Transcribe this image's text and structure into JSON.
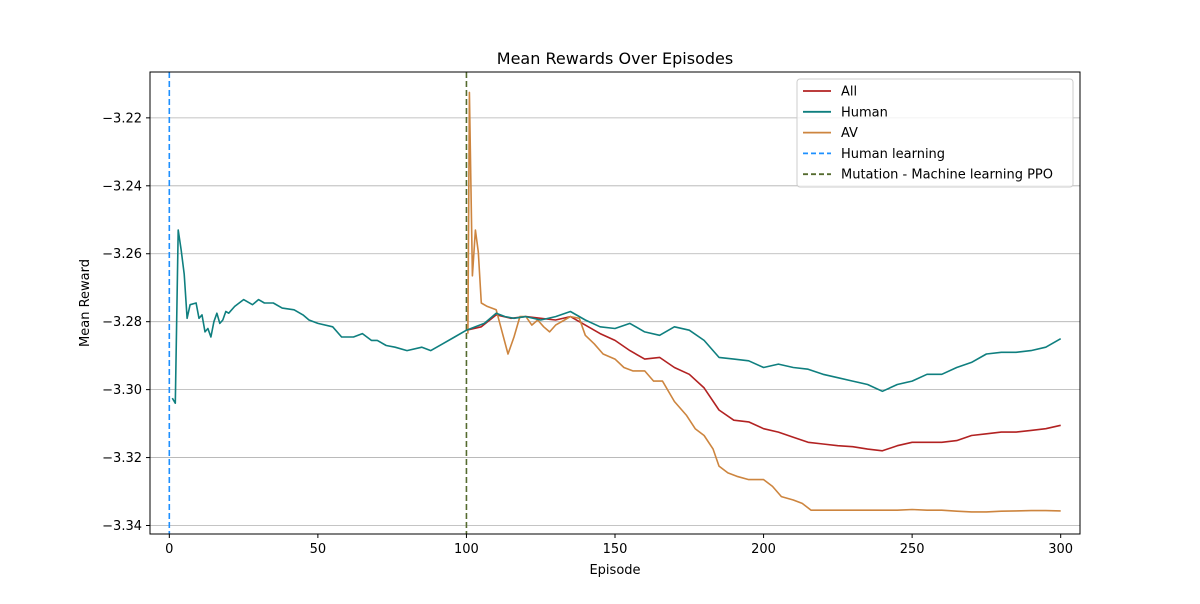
{
  "chart_data": {
    "type": "line",
    "title": "Mean Rewards Over Episodes",
    "xlabel": "Episode",
    "ylabel": "Mean Reward",
    "xlim": [
      -6.5,
      306.5
    ],
    "ylim": [
      -3.3425,
      -3.2065
    ],
    "x_ticks": [
      0,
      50,
      100,
      150,
      200,
      250,
      300
    ],
    "x_tick_labels": [
      "0",
      "50",
      "100",
      "150",
      "200",
      "250",
      "300"
    ],
    "y_ticks": [
      -3.22,
      -3.24,
      -3.26,
      -3.28,
      -3.3,
      -3.32,
      -3.34
    ],
    "y_tick_labels": [
      "−3.22",
      "−3.24",
      "−3.26",
      "−3.28",
      "−3.30",
      "−3.32",
      "−3.34"
    ],
    "grid": "horizontal",
    "legend_position": "top-right",
    "series": [
      {
        "name": "All",
        "color": "#b22222",
        "points": [
          [
            100,
            -3.2825
          ],
          [
            105,
            -3.2815
          ],
          [
            110,
            -3.278
          ],
          [
            115,
            -3.279
          ],
          [
            120,
            -3.2785
          ],
          [
            125,
            -3.279
          ],
          [
            130,
            -3.2795
          ],
          [
            135,
            -3.2785
          ],
          [
            140,
            -3.281
          ],
          [
            145,
            -3.2835
          ],
          [
            150,
            -3.2855
          ],
          [
            155,
            -3.2885
          ],
          [
            160,
            -3.291
          ],
          [
            165,
            -3.2905
          ],
          [
            170,
            -3.2935
          ],
          [
            175,
            -3.2955
          ],
          [
            180,
            -3.2995
          ],
          [
            185,
            -3.306
          ],
          [
            190,
            -3.309
          ],
          [
            195,
            -3.3095
          ],
          [
            200,
            -3.3115
          ],
          [
            205,
            -3.3125
          ],
          [
            210,
            -3.314
          ],
          [
            215,
            -3.3155
          ],
          [
            220,
            -3.316
          ],
          [
            225,
            -3.3165
          ],
          [
            230,
            -3.3168
          ],
          [
            235,
            -3.3175
          ],
          [
            240,
            -3.318
          ],
          [
            245,
            -3.3165
          ],
          [
            250,
            -3.3155
          ],
          [
            255,
            -3.3155
          ],
          [
            260,
            -3.3155
          ],
          [
            265,
            -3.315
          ],
          [
            270,
            -3.3135
          ],
          [
            275,
            -3.313
          ],
          [
            280,
            -3.3125
          ],
          [
            285,
            -3.3125
          ],
          [
            290,
            -3.312
          ],
          [
            295,
            -3.3115
          ],
          [
            300,
            -3.3105
          ]
        ]
      },
      {
        "name": "Human",
        "color": "#0f7f7f",
        "points": [
          [
            1,
            -3.3025
          ],
          [
            2,
            -3.304
          ],
          [
            3,
            -3.253
          ],
          [
            4,
            -3.259
          ],
          [
            5,
            -3.266
          ],
          [
            6,
            -3.279
          ],
          [
            7,
            -3.275
          ],
          [
            9,
            -3.2745
          ],
          [
            10,
            -3.279
          ],
          [
            11,
            -3.278
          ],
          [
            12,
            -3.283
          ],
          [
            13,
            -3.282
          ],
          [
            14,
            -3.2845
          ],
          [
            15,
            -3.28
          ],
          [
            16,
            -3.2775
          ],
          [
            17,
            -3.2805
          ],
          [
            18,
            -3.2795
          ],
          [
            19,
            -3.277
          ],
          [
            20,
            -3.2775
          ],
          [
            22,
            -3.2755
          ],
          [
            25,
            -3.2735
          ],
          [
            28,
            -3.275
          ],
          [
            30,
            -3.2735
          ],
          [
            32,
            -3.2745
          ],
          [
            35,
            -3.2745
          ],
          [
            38,
            -3.276
          ],
          [
            42,
            -3.2765
          ],
          [
            45,
            -3.278
          ],
          [
            47,
            -3.2795
          ],
          [
            50,
            -3.2805
          ],
          [
            55,
            -3.2815
          ],
          [
            58,
            -3.2845
          ],
          [
            62,
            -3.2845
          ],
          [
            65,
            -3.2835
          ],
          [
            68,
            -3.2855
          ],
          [
            70,
            -3.2855
          ],
          [
            73,
            -3.287
          ],
          [
            76,
            -3.2875
          ],
          [
            80,
            -3.2885
          ],
          [
            85,
            -3.2875
          ],
          [
            88,
            -3.2885
          ],
          [
            92,
            -3.2865
          ],
          [
            96,
            -3.2845
          ],
          [
            100,
            -3.2825
          ],
          [
            103,
            -3.2815
          ],
          [
            106,
            -3.2805
          ],
          [
            110,
            -3.2775
          ],
          [
            113,
            -3.2785
          ],
          [
            116,
            -3.279
          ],
          [
            120,
            -3.2785
          ],
          [
            125,
            -3.2795
          ],
          [
            130,
            -3.2785
          ],
          [
            135,
            -3.277
          ],
          [
            140,
            -3.2795
          ],
          [
            145,
            -3.2815
          ],
          [
            150,
            -3.282
          ],
          [
            155,
            -3.2805
          ],
          [
            160,
            -3.283
          ],
          [
            165,
            -3.284
          ],
          [
            170,
            -3.2815
          ],
          [
            175,
            -3.2825
          ],
          [
            180,
            -3.2855
          ],
          [
            185,
            -3.2905
          ],
          [
            190,
            -3.291
          ],
          [
            195,
            -3.2915
          ],
          [
            200,
            -3.2935
          ],
          [
            205,
            -3.2925
          ],
          [
            210,
            -3.2935
          ],
          [
            215,
            -3.294
          ],
          [
            220,
            -3.2955
          ],
          [
            225,
            -3.2965
          ],
          [
            230,
            -3.2975
          ],
          [
            235,
            -3.2985
          ],
          [
            240,
            -3.3005
          ],
          [
            245,
            -3.2985
          ],
          [
            250,
            -3.2975
          ],
          [
            255,
            -3.2955
          ],
          [
            260,
            -3.2955
          ],
          [
            265,
            -3.2935
          ],
          [
            270,
            -3.292
          ],
          [
            275,
            -3.2895
          ],
          [
            280,
            -3.289
          ],
          [
            285,
            -3.289
          ],
          [
            290,
            -3.2885
          ],
          [
            295,
            -3.2875
          ],
          [
            300,
            -3.285
          ]
        ]
      },
      {
        "name": "AV",
        "color": "#cd853f",
        "points": [
          [
            100.5,
            -3.2835
          ],
          [
            101,
            -3.2125
          ],
          [
            102,
            -3.2665
          ],
          [
            103,
            -3.253
          ],
          [
            104,
            -3.2595
          ],
          [
            105,
            -3.2745
          ],
          [
            107,
            -3.2755
          ],
          [
            110,
            -3.2765
          ],
          [
            112,
            -3.283
          ],
          [
            114,
            -3.2895
          ],
          [
            116,
            -3.2845
          ],
          [
            118,
            -3.2785
          ],
          [
            120,
            -3.2785
          ],
          [
            122,
            -3.281
          ],
          [
            124,
            -3.2795
          ],
          [
            126,
            -3.2815
          ],
          [
            128,
            -3.283
          ],
          [
            130,
            -3.281
          ],
          [
            133,
            -3.2795
          ],
          [
            135,
            -3.2785
          ],
          [
            138,
            -3.279
          ],
          [
            140,
            -3.284
          ],
          [
            143,
            -3.2865
          ],
          [
            146,
            -3.2895
          ],
          [
            150,
            -3.291
          ],
          [
            153,
            -3.2935
          ],
          [
            156,
            -3.2945
          ],
          [
            160,
            -3.2945
          ],
          [
            163,
            -3.2975
          ],
          [
            166,
            -3.2975
          ],
          [
            170,
            -3.3035
          ],
          [
            174,
            -3.3075
          ],
          [
            177,
            -3.3115
          ],
          [
            180,
            -3.3135
          ],
          [
            183,
            -3.3175
          ],
          [
            185,
            -3.3225
          ],
          [
            188,
            -3.3245
          ],
          [
            191,
            -3.3255
          ],
          [
            195,
            -3.3265
          ],
          [
            200,
            -3.3265
          ],
          [
            203,
            -3.3285
          ],
          [
            206,
            -3.3315
          ],
          [
            210,
            -3.3325
          ],
          [
            213,
            -3.3335
          ],
          [
            216,
            -3.3355
          ],
          [
            220,
            -3.3355
          ],
          [
            225,
            -3.3355
          ],
          [
            230,
            -3.3355
          ],
          [
            235,
            -3.3355
          ],
          [
            240,
            -3.3355
          ],
          [
            245,
            -3.3355
          ],
          [
            250,
            -3.3353
          ],
          [
            255,
            -3.3355
          ],
          [
            260,
            -3.3355
          ],
          [
            265,
            -3.3358
          ],
          [
            270,
            -3.336
          ],
          [
            275,
            -3.336
          ],
          [
            280,
            -3.3358
          ],
          [
            285,
            -3.3357
          ],
          [
            290,
            -3.3356
          ],
          [
            295,
            -3.3356
          ],
          [
            300,
            -3.3357
          ]
        ]
      }
    ],
    "vlines": [
      {
        "name": "Human learning",
        "x": 0,
        "color": "#1e90ff",
        "style": "dashed"
      },
      {
        "name": "Mutation - Machine learning PPO",
        "x": 100,
        "color": "#556b2f",
        "style": "dashed"
      }
    ]
  }
}
